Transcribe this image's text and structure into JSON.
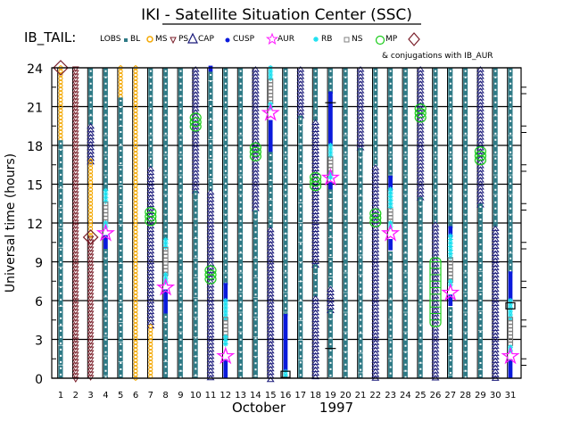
{
  "chart_data": {
    "type": "scatter",
    "title": "IKI - Satellite Situation Center (SSC)",
    "legend_prefix": "IB_TAIL:",
    "legend": [
      {
        "key": "LOBS",
        "label": "LOBS",
        "color": "#2e7a86"
      },
      {
        "key": "BL",
        "label": "BL",
        "color": "#2e7a86"
      },
      {
        "key": "MS",
        "label": "MS",
        "color": "#f5a800"
      },
      {
        "key": "PS",
        "label": "PS",
        "color": "#7a1f2a"
      },
      {
        "key": "CAP",
        "label": "CAP",
        "color": "#1a1a7a"
      },
      {
        "key": "CUSP",
        "label": "CUSP",
        "color": "#0a1adc"
      },
      {
        "key": "AUR",
        "label": "AUR",
        "color": "#ff1aff"
      },
      {
        "key": "RB",
        "label": "RB",
        "color": "#1ae0f0"
      },
      {
        "key": "NS",
        "label": "NS",
        "color": "#808080"
      },
      {
        "key": "MP",
        "label": "MP",
        "color": "#1acc1a"
      },
      {
        "key": "CONJ",
        "label": "",
        "color": "#7a1f2a"
      }
    ],
    "legend_note": "& conjugations with IB_AUR",
    "ylabel": "Universal time (hours)",
    "xlabel_month": "October",
    "xlabel_year": "1997",
    "ylim": [
      0,
      24
    ],
    "yticks": [
      "0",
      "3",
      "6",
      "9",
      "12",
      "15",
      "18",
      "21",
      "24"
    ],
    "xticks": [
      "1",
      "2",
      "3",
      "4",
      "5",
      "6",
      "7",
      "8",
      "9",
      "10",
      "11",
      "12",
      "13",
      "14",
      "15",
      "16",
      "17",
      "18",
      "19",
      "20",
      "21",
      "22",
      "23",
      "24",
      "25",
      "26",
      "27",
      "28",
      "29",
      "30",
      "31"
    ],
    "grid": true,
    "days": [
      {
        "day": 1,
        "segments": [
          [
            "MS",
            24,
            18.4
          ],
          [
            "LOBS",
            18.4,
            0
          ]
        ],
        "points": [
          [
            "CONJ",
            24
          ]
        ]
      },
      {
        "day": 2,
        "segments": [
          [
            "PS",
            24,
            0
          ]
        ],
        "points": []
      },
      {
        "day": 3,
        "segments": [
          [
            "LOBS",
            24,
            19.6
          ],
          [
            "CAP",
            19.6,
            16.8
          ],
          [
            "MS",
            16.8,
            10.9
          ],
          [
            "PS",
            10.9,
            0
          ]
        ],
        "points": [
          [
            "CONJ",
            10.9
          ]
        ]
      },
      {
        "day": 4,
        "segments": [
          [
            "LOBS",
            24,
            14.5
          ],
          [
            "RB",
            14.5,
            13.5
          ],
          [
            "NS",
            13.5,
            12
          ],
          [
            "RB",
            12,
            11.5
          ],
          [
            "CUSP",
            10.9,
            10
          ],
          [
            "LOBS",
            10,
            0
          ]
        ],
        "points": [
          [
            "AUR",
            11.2
          ]
        ]
      },
      {
        "day": 5,
        "segments": [
          [
            "MS",
            24,
            21.7
          ],
          [
            "LOBS",
            21.7,
            0
          ]
        ],
        "points": []
      },
      {
        "day": 6,
        "segments": [
          [
            "MS",
            24,
            0
          ]
        ],
        "points": []
      },
      {
        "day": 7,
        "segments": [
          [
            "LOBS",
            24,
            16.3
          ],
          [
            "CAP",
            16.3,
            4
          ],
          [
            "MS",
            4,
            0
          ]
        ],
        "points": [
          [
            "MP",
            12.5
          ]
        ]
      },
      {
        "day": 8,
        "segments": [
          [
            "LOBS",
            24,
            10.7
          ],
          [
            "RB",
            10.7,
            10
          ],
          [
            "NS",
            10,
            8
          ],
          [
            "RB",
            8,
            7.4
          ],
          [
            "CUSP",
            6.7,
            5
          ],
          [
            "LOBS",
            5,
            0
          ]
        ],
        "points": [
          [
            "AUR",
            7
          ]
        ]
      },
      {
        "day": 9,
        "segments": [
          [
            "LOBS",
            24,
            0
          ]
        ],
        "points": []
      },
      {
        "day": 10,
        "segments": [
          [
            "CAP",
            24,
            14.5
          ],
          [
            "LOBS",
            14.5,
            0
          ]
        ],
        "points": [
          [
            "MP",
            19.8
          ]
        ]
      },
      {
        "day": 11,
        "segments": [
          [
            "CUSP",
            24,
            23.7
          ],
          [
            "LOBS",
            23.7,
            14.5
          ],
          [
            "CAP",
            14.5,
            0
          ]
        ],
        "points": [
          [
            "MP",
            8
          ]
        ]
      },
      {
        "day": 12,
        "segments": [
          [
            "LOBS",
            24,
            7.2
          ],
          [
            "CUSP",
            7.2,
            6
          ],
          [
            "RB",
            6,
            4.6
          ],
          [
            "NS",
            4.6,
            3.2
          ],
          [
            "RB",
            3.2,
            2.4
          ],
          [
            "CUSP",
            1.3,
            0
          ]
        ],
        "points": [
          [
            "AUR",
            1.7
          ]
        ]
      },
      {
        "day": 13,
        "segments": [
          [
            "LOBS",
            24,
            0
          ]
        ],
        "points": []
      },
      {
        "day": 14,
        "segments": [
          [
            "CAP",
            24,
            13
          ],
          [
            "LOBS",
            13,
            0
          ]
        ],
        "points": [
          [
            "MP",
            17.5
          ]
        ]
      },
      {
        "day": 15,
        "segments": [
          [
            "RB",
            24,
            23
          ],
          [
            "NS",
            23,
            21.2
          ],
          [
            "RB",
            21.2,
            20.8
          ],
          [
            "CUSP",
            19.8,
            17.5
          ],
          [
            "LOBS",
            17.5,
            11.6
          ],
          [
            "CAP",
            11.6,
            0
          ]
        ],
        "points": [
          [
            "AUR",
            20.5
          ]
        ]
      },
      {
        "day": 16,
        "segments": [
          [
            "LOBS",
            24,
            4.8
          ],
          [
            "CUSP",
            4.8,
            0.5
          ],
          [
            "RB",
            0.5,
            0
          ]
        ],
        "points": [
          [
            "BOX",
            0.3
          ]
        ]
      },
      {
        "day": 17,
        "segments": [
          [
            "CAP",
            24,
            20.3
          ],
          [
            "LOBS",
            20.3,
            0
          ]
        ],
        "points": []
      },
      {
        "day": 18,
        "segments": [
          [
            "LOBS",
            24,
            19.9
          ],
          [
            "CAP",
            19.9,
            8.8
          ],
          [
            "LOBS",
            8.8,
            6.3
          ],
          [
            "CAP",
            6.3,
            0
          ]
        ],
        "points": [
          [
            "MP",
            15.2
          ]
        ]
      },
      {
        "day": 19,
        "segments": [
          [
            "LOBS",
            24,
            22
          ],
          [
            "CUSP",
            22,
            18
          ],
          [
            "RB",
            18,
            17
          ],
          [
            "NS",
            17,
            15.8
          ],
          [
            "RB",
            15.8,
            15.5
          ],
          [
            "CUSP",
            15,
            14.6
          ],
          [
            "LOBS",
            14.6,
            7
          ],
          [
            "CAP",
            7,
            5.3
          ],
          [
            "LOBS",
            5.3,
            0
          ]
        ],
        "points": [
          [
            "AUR",
            15.5
          ],
          [
            "BAR",
            21.3
          ],
          [
            "BAR",
            2.3
          ]
        ]
      },
      {
        "day": 20,
        "segments": [
          [
            "LOBS",
            24,
            0
          ]
        ],
        "points": []
      },
      {
        "day": 21,
        "segments": [
          [
            "CAP",
            24,
            17.8
          ],
          [
            "LOBS",
            17.8,
            0
          ]
        ],
        "points": []
      },
      {
        "day": 22,
        "segments": [
          [
            "LOBS",
            24,
            16.4
          ],
          [
            "CAP",
            16.4,
            0
          ]
        ],
        "points": [
          [
            "MP",
            12.4
          ]
        ]
      },
      {
        "day": 23,
        "segments": [
          [
            "LOBS",
            24,
            15.5
          ],
          [
            "CUSP",
            15.5,
            14.6
          ],
          [
            "RB",
            14.6,
            13
          ],
          [
            "NS",
            13,
            12
          ],
          [
            "RB",
            12,
            11.7
          ],
          [
            "CUSP",
            10.6,
            9.8
          ],
          [
            "LOBS",
            9.8,
            0
          ]
        ],
        "points": [
          [
            "AUR",
            11.2
          ]
        ]
      },
      {
        "day": 24,
        "segments": [
          [
            "LOBS",
            24,
            0
          ]
        ],
        "points": []
      },
      {
        "day": 25,
        "segments": [
          [
            "CAP",
            24,
            14
          ],
          [
            "LOBS",
            14,
            0
          ]
        ],
        "points": [
          [
            "MP",
            20.5
          ]
        ]
      },
      {
        "day": 26,
        "segments": [
          [
            "LOBS",
            24,
            12
          ],
          [
            "CAP",
            12,
            0
          ]
        ],
        "points": [
          [
            "MPL",
            6.6
          ]
        ]
      },
      {
        "day": 27,
        "segments": [
          [
            "LOBS",
            24,
            11.6
          ],
          [
            "CUSP",
            11.6,
            11
          ],
          [
            "RB",
            11,
            9.2
          ],
          [
            "NS",
            9.2,
            7.5
          ],
          [
            "RB",
            7.5,
            7
          ],
          [
            "CUSP",
            6.3,
            5.5
          ],
          [
            "LOBS",
            5.5,
            0
          ]
        ],
        "points": [
          [
            "AUR",
            6.6
          ]
        ]
      },
      {
        "day": 28,
        "segments": [
          [
            "LOBS",
            24,
            0
          ]
        ],
        "points": []
      },
      {
        "day": 29,
        "segments": [
          [
            "CAP",
            24,
            13.5
          ],
          [
            "LOBS",
            13.5,
            0
          ]
        ],
        "points": [
          [
            "MP",
            17.2
          ]
        ]
      },
      {
        "day": 30,
        "segments": [
          [
            "LOBS",
            24,
            11.7
          ],
          [
            "CAP",
            11.7,
            0
          ]
        ],
        "points": []
      },
      {
        "day": 31,
        "segments": [
          [
            "LOBS",
            24,
            8.1
          ],
          [
            "CUSP",
            8.1,
            6
          ],
          [
            "RB",
            6,
            4.6
          ],
          [
            "NS",
            4.6,
            2.4
          ],
          [
            "RB",
            2.4,
            1.9
          ],
          [
            "CUSP",
            1.3,
            0
          ]
        ],
        "points": [
          [
            "AUR",
            1.7
          ],
          [
            "BOX",
            5.6
          ]
        ]
      }
    ]
  }
}
